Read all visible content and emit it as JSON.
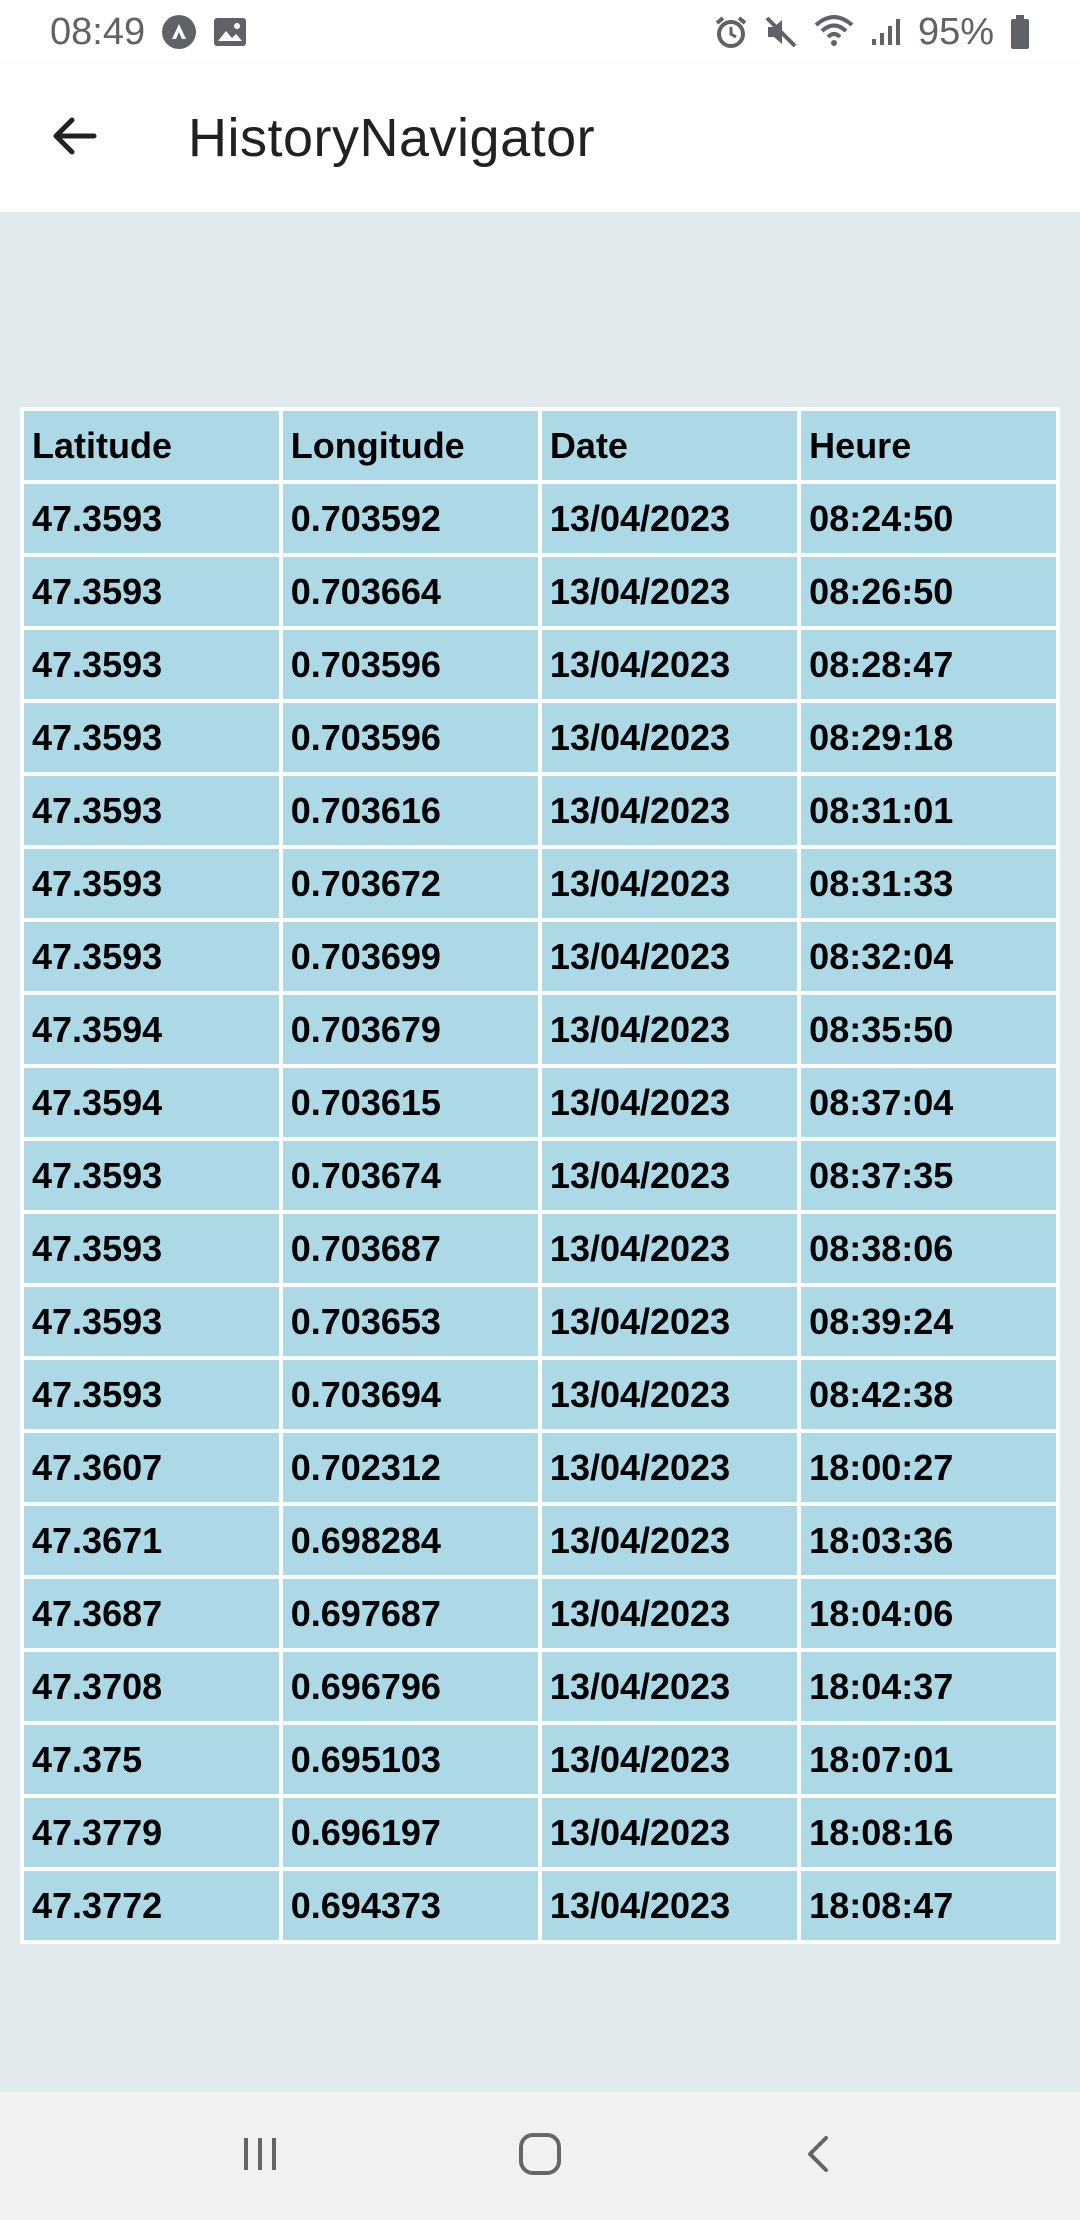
{
  "status_bar": {
    "time": "08:49",
    "battery": "95%",
    "icons": [
      "android-auto-icon",
      "image-icon",
      "alarm-icon",
      "mute-icon",
      "wifi-icon",
      "signal-icon",
      "battery-icon"
    ]
  },
  "app_bar": {
    "title": "HistoryNavigator",
    "back_icon": "arrow-back-icon"
  },
  "table": {
    "headers": [
      "Latitude",
      "Longitude",
      "Date",
      "Heure"
    ],
    "rows": [
      [
        "47.3593",
        "0.703592",
        "13/04/2023",
        "08:24:50"
      ],
      [
        "47.3593",
        "0.703664",
        "13/04/2023",
        "08:26:50"
      ],
      [
        "47.3593",
        "0.703596",
        "13/04/2023",
        "08:28:47"
      ],
      [
        "47.3593",
        "0.703596",
        "13/04/2023",
        "08:29:18"
      ],
      [
        "47.3593",
        "0.703616",
        "13/04/2023",
        "08:31:01"
      ],
      [
        "47.3593",
        "0.703672",
        "13/04/2023",
        "08:31:33"
      ],
      [
        "47.3593",
        "0.703699",
        "13/04/2023",
        "08:32:04"
      ],
      [
        "47.3594",
        "0.703679",
        "13/04/2023",
        "08:35:50"
      ],
      [
        "47.3594",
        "0.703615",
        "13/04/2023",
        "08:37:04"
      ],
      [
        "47.3593",
        "0.703674",
        "13/04/2023",
        "08:37:35"
      ],
      [
        "47.3593",
        "0.703687",
        "13/04/2023",
        "08:38:06"
      ],
      [
        "47.3593",
        "0.703653",
        "13/04/2023",
        "08:39:24"
      ],
      [
        "47.3593",
        "0.703694",
        "13/04/2023",
        "08:42:38"
      ],
      [
        "47.3607",
        "0.702312",
        "13/04/2023",
        "18:00:27"
      ],
      [
        "47.3671",
        "0.698284",
        "13/04/2023",
        "18:03:36"
      ],
      [
        "47.3687",
        "0.697687",
        "13/04/2023",
        "18:04:06"
      ],
      [
        "47.3708",
        "0.696796",
        "13/04/2023",
        "18:04:37"
      ],
      [
        "47.375",
        "0.695103",
        "13/04/2023",
        "18:07:01"
      ],
      [
        "47.3779",
        "0.696197",
        "13/04/2023",
        "18:08:16"
      ],
      [
        "47.3772",
        "0.694373",
        "13/04/2023",
        "18:08:47"
      ]
    ]
  },
  "nav_bar": {
    "buttons": [
      "recent-apps-icon",
      "home-icon",
      "back-icon"
    ]
  },
  "colors": {
    "cell_bg": "#add8e6",
    "page_bg": "#e1eaed",
    "nav_bg": "#f1f1f1"
  }
}
